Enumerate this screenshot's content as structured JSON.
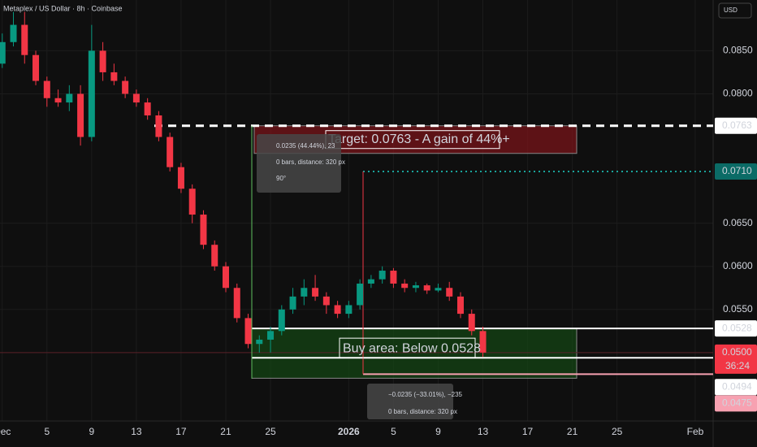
{
  "chart_data": {
    "type": "candlestick",
    "title": "Metaplex / US Dollar · 8h · Coinbase",
    "currency": "USD",
    "up_color": "#089981",
    "down_color": "#f23645",
    "x": [
      0,
      1,
      2,
      3,
      4,
      5,
      6,
      7,
      8,
      9,
      10,
      11,
      12,
      13,
      14,
      15,
      16,
      17,
      18,
      19,
      20,
      21,
      22,
      23,
      24,
      25,
      26,
      27,
      28,
      29,
      30,
      31,
      32,
      33,
      34,
      35,
      36,
      37,
      38,
      39,
      40,
      41,
      42,
      43
    ],
    "open": [
      0.0835,
      0.086,
      0.088,
      0.0845,
      0.0815,
      0.0795,
      0.079,
      0.08,
      0.075,
      0.085,
      0.0825,
      0.0815,
      0.08,
      0.079,
      0.0775,
      0.075,
      0.0715,
      0.069,
      0.066,
      0.0625,
      0.06,
      0.0575,
      0.054,
      0.051,
      0.0515,
      0.0525,
      0.055,
      0.0565,
      0.0575,
      0.0565,
      0.0555,
      0.0545,
      0.0555,
      0.058,
      0.0585,
      0.0595,
      0.058,
      0.0575,
      0.0578,
      0.0572,
      0.0575,
      0.0565,
      0.0545,
      0.0525
    ],
    "high": [
      0.087,
      0.0895,
      0.0895,
      0.085,
      0.082,
      0.0805,
      0.081,
      0.081,
      0.088,
      0.086,
      0.0835,
      0.082,
      0.0805,
      0.0795,
      0.078,
      0.0755,
      0.072,
      0.0695,
      0.0665,
      0.063,
      0.0605,
      0.058,
      0.0545,
      0.052,
      0.053,
      0.0555,
      0.0575,
      0.0585,
      0.059,
      0.057,
      0.056,
      0.056,
      0.0585,
      0.059,
      0.06,
      0.0598,
      0.0585,
      0.0582,
      0.058,
      0.058,
      0.0582,
      0.057,
      0.055,
      0.053
    ],
    "low": [
      0.083,
      0.0855,
      0.0835,
      0.081,
      0.0785,
      0.0785,
      0.078,
      0.074,
      0.0745,
      0.0815,
      0.081,
      0.0795,
      0.0785,
      0.077,
      0.0745,
      0.071,
      0.0685,
      0.065,
      0.062,
      0.0595,
      0.057,
      0.0535,
      0.0505,
      0.05,
      0.05,
      0.052,
      0.0545,
      0.0555,
      0.056,
      0.0545,
      0.054,
      0.054,
      0.055,
      0.0575,
      0.058,
      0.0575,
      0.057,
      0.057,
      0.0568,
      0.057,
      0.056,
      0.054,
      0.052,
      0.0495
    ],
    "close": [
      0.086,
      0.088,
      0.0845,
      0.0815,
      0.0795,
      0.079,
      0.08,
      0.075,
      0.085,
      0.0825,
      0.0815,
      0.08,
      0.079,
      0.0775,
      0.075,
      0.0715,
      0.069,
      0.066,
      0.0625,
      0.06,
      0.0575,
      0.054,
      0.051,
      0.0515,
      0.0525,
      0.055,
      0.0565,
      0.0575,
      0.0565,
      0.0555,
      0.0545,
      0.0555,
      0.058,
      0.0585,
      0.0595,
      0.058,
      0.0575,
      0.0578,
      0.0572,
      0.0575,
      0.0565,
      0.0545,
      0.0525,
      0.05
    ],
    "xlim": [
      -0.2,
      63.6
    ],
    "xticks": [
      {
        "value": 0,
        "label": "Dec"
      },
      {
        "value": 4,
        "label": "5"
      },
      {
        "value": 8,
        "label": "9"
      },
      {
        "value": 12,
        "label": "13"
      },
      {
        "value": 16,
        "label": "17"
      },
      {
        "value": 20,
        "label": "21"
      },
      {
        "value": 24,
        "label": "25"
      },
      {
        "value": 31,
        "label": "2026"
      },
      {
        "value": 35,
        "label": "5"
      },
      {
        "value": 39,
        "label": "9"
      },
      {
        "value": 43,
        "label": "13"
      },
      {
        "value": 47,
        "label": "17"
      },
      {
        "value": 51,
        "label": "21"
      },
      {
        "value": 55,
        "label": "25"
      },
      {
        "value": 62,
        "label": "Feb"
      }
    ],
    "ylim": [
      0.04207,
      0.09088
    ],
    "yticks": [
      {
        "value": 0.055,
        "label": "0.0550"
      },
      {
        "value": 0.06,
        "label": "0.0600"
      },
      {
        "value": 0.065,
        "label": "0.0650"
      },
      {
        "value": 0.08,
        "label": "0.0800"
      },
      {
        "value": 0.085,
        "label": "0.0850"
      }
    ],
    "price_labels": [
      {
        "value": 0.0763,
        "label": "0.0763",
        "color": "#ffffff"
      },
      {
        "value": 0.071,
        "label": "0.0710",
        "color": "#0b6b66"
      },
      {
        "value": 0.0528,
        "label": "0.0528",
        "color": "#ffffff"
      },
      {
        "value": 0.05,
        "label": "0.0500",
        "color": "#f23645"
      },
      {
        "value": 0.0494,
        "label": "0.0494",
        "color": "#ffffff"
      },
      {
        "value": 0.0475,
        "label": "0.0475",
        "color": "#f7a1b1"
      }
    ],
    "countdown": "36:24",
    "target_text": "Target: 0.0763 - A gain of 44%+",
    "buy_text": "Buy area: Below 0.0528",
    "measure_up": [
      "0.0235 (44.44%), 23",
      "0 bars, distance: 320 px",
      "90°"
    ],
    "measure_down": [
      "−0.0235 (−33.01%), −235",
      "0 bars, distance: 320 px"
    ]
  }
}
